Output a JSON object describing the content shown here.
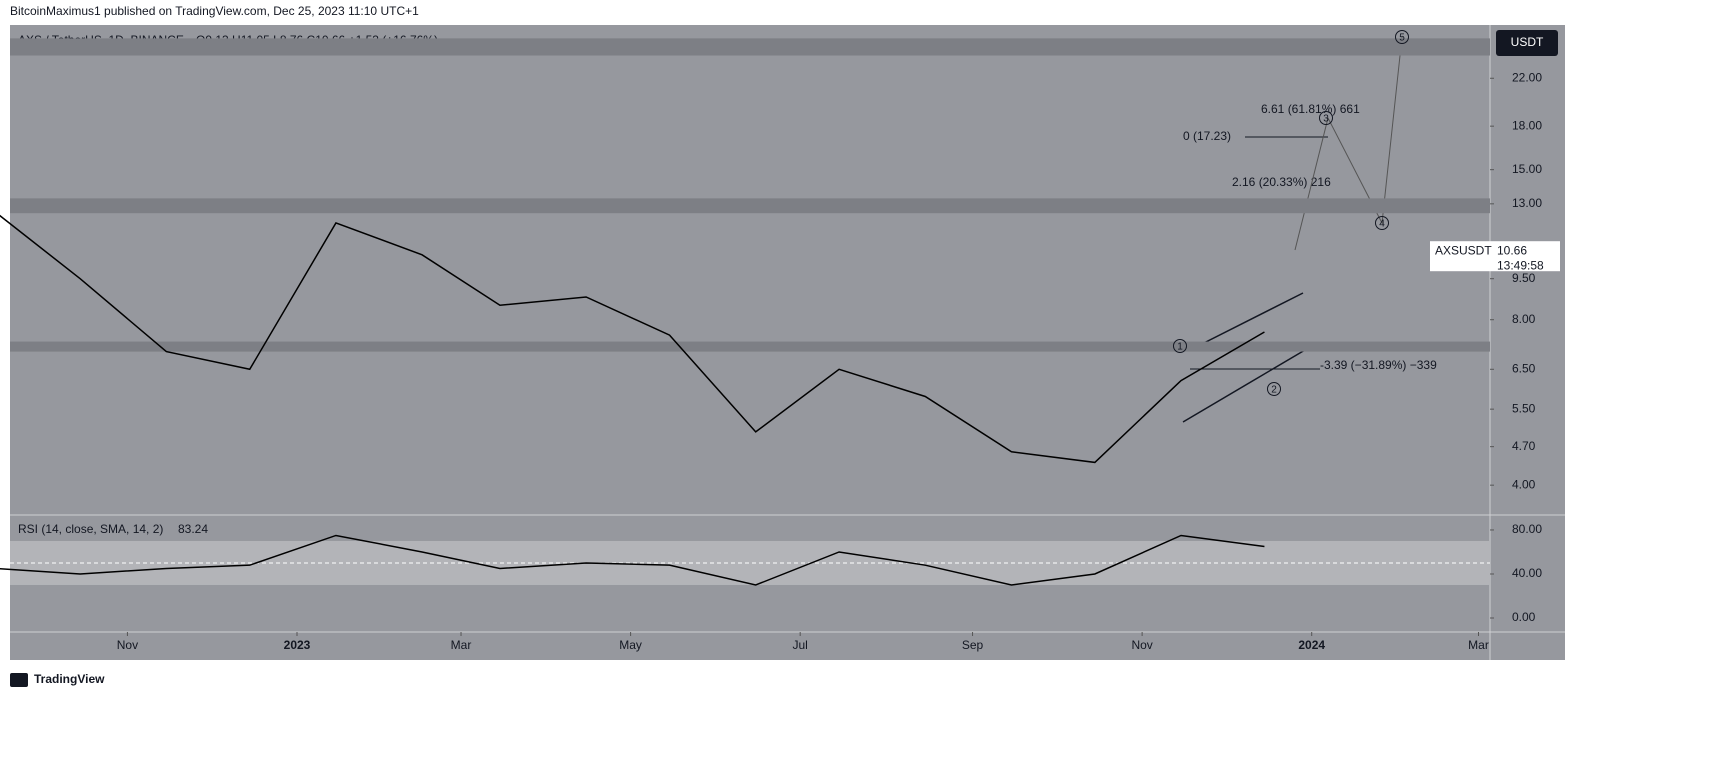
{
  "header": {
    "published": "BitcoinMaximus1 published on TradingView.com, Dec 25, 2023 11:10 UTC+1",
    "footer": "TradingView"
  },
  "chart_data": [
    {
      "type": "line",
      "title": "AXS / TetherUS, 1D, BINANCE",
      "ohlc": "O9.13 H11.05 L8.76 C10.66 +1.53 (+16.76%)",
      "currency": "USDT",
      "log_scale": true,
      "color": "#000000",
      "background": "#96989e",
      "x": [
        "2022-09",
        "2022-10",
        "2022-11",
        "2022-12",
        "2023-01",
        "2023-02",
        "2023-03",
        "2023-04",
        "2023-05",
        "2023-06",
        "2023-07",
        "2023-08",
        "2023-09",
        "2023-10",
        "2023-11",
        "2023-12"
      ],
      "series": [
        {
          "name": "AXSUSDT",
          "color": "#000000",
          "values": [
            12.5,
            9.5,
            7.0,
            6.5,
            12.0,
            10.5,
            8.5,
            8.8,
            7.5,
            5.0,
            6.5,
            5.8,
            4.6,
            4.4,
            6.2,
            7.6
          ]
        }
      ],
      "last_price": {
        "label": "AXSUSDT",
        "value": 10.66,
        "countdown": "13:49:58"
      },
      "zones": [
        [
          24.2,
          26.0
        ],
        [
          12.5,
          13.3
        ],
        [
          7.0,
          7.3
        ]
      ],
      "ylim": [
        3.53,
        27.5
      ],
      "yticks": [
        {
          "value": 4,
          "label": "4.00"
        },
        {
          "value": 4.7,
          "label": "4.70"
        },
        {
          "value": 5.5,
          "label": "5.50"
        },
        {
          "value": 6.5,
          "label": "6.50"
        },
        {
          "value": 8,
          "label": "8.00"
        },
        {
          "value": 9.5,
          "label": "9.50"
        },
        {
          "value": 13,
          "label": "13.00"
        },
        {
          "value": 15,
          "label": "15.00"
        },
        {
          "value": 18,
          "label": "18.00"
        },
        {
          "value": 22,
          "label": "22.00"
        }
      ],
      "xticks": [
        {
          "value": "2022-11",
          "label": "Nov"
        },
        {
          "value": "2023-01",
          "label": "2023"
        },
        {
          "value": "2023-03",
          "label": "Mar"
        },
        {
          "value": "2023-05",
          "label": "May"
        },
        {
          "value": "2023-07",
          "label": "Jul"
        },
        {
          "value": "2023-09",
          "label": "Sep"
        },
        {
          "value": "2023-11",
          "label": "Nov"
        },
        {
          "value": "2024-01",
          "label": "2024"
        },
        {
          "value": "2024-03",
          "label": "Mar"
        }
      ],
      "annotations": [
        "6.61 (61.81%) 661",
        "0 (17.23)",
        "2.16 (20.33%) 216",
        "-3.39 (−31.89%) −339"
      ],
      "waves": [
        "1",
        "2",
        "3",
        "4",
        "5"
      ]
    },
    {
      "type": "line",
      "title": "RSI (14, close, SMA, 14, 2)",
      "last_value": 83.24,
      "band": [
        30,
        70
      ],
      "midline": 50,
      "x": [
        "2022-09",
        "2022-10",
        "2022-11",
        "2022-12",
        "2023-01",
        "2023-02",
        "2023-03",
        "2023-04",
        "2023-05",
        "2023-06",
        "2023-07",
        "2023-08",
        "2023-09",
        "2023-10",
        "2023-11",
        "2023-12"
      ],
      "series": [
        {
          "name": "RSI",
          "color": "#000000",
          "values": [
            45,
            40,
            45,
            48,
            75,
            60,
            45,
            50,
            48,
            30,
            60,
            48,
            30,
            40,
            75,
            65
          ]
        }
      ],
      "ylim": [
        -10.9,
        93.6
      ],
      "yticks": [
        {
          "value": 0,
          "label": "0.00"
        },
        {
          "value": 40,
          "label": "40.00"
        },
        {
          "value": 80,
          "label": "80.00"
        }
      ]
    }
  ]
}
